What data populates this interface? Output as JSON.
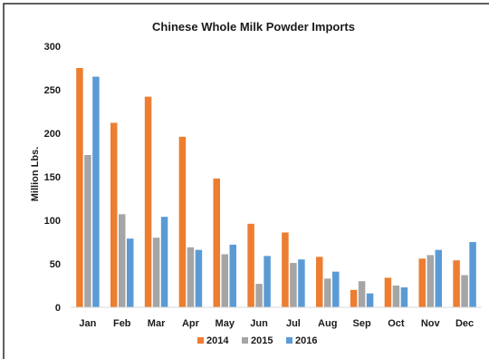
{
  "chart_data": {
    "type": "bar",
    "title": "Chinese Whole Milk Powder Imports",
    "xlabel": "",
    "ylabel": "Million Lbs.",
    "ylim": [
      0,
      300
    ],
    "yticks": [
      0,
      50,
      100,
      150,
      200,
      250,
      300
    ],
    "categories": [
      "Jan",
      "Feb",
      "Mar",
      "Apr",
      "May",
      "Jun",
      "Jul",
      "Aug",
      "Sep",
      "Oct",
      "Nov",
      "Dec"
    ],
    "series": [
      {
        "name": "2014",
        "color": "#ed7d31",
        "values": [
          275,
          212,
          242,
          196,
          148,
          96,
          86,
          58,
          20,
          34,
          56,
          54
        ]
      },
      {
        "name": "2015",
        "color": "#a5a5a5",
        "values": [
          175,
          107,
          80,
          69,
          61,
          27,
          51,
          33,
          30,
          25,
          60,
          37
        ]
      },
      {
        "name": "2016",
        "color": "#5b9bd5",
        "values": [
          265,
          79,
          104,
          66,
          72,
          59,
          55,
          41,
          16,
          23,
          66,
          75
        ]
      }
    ],
    "grid": false,
    "legend_position": "bottom"
  }
}
